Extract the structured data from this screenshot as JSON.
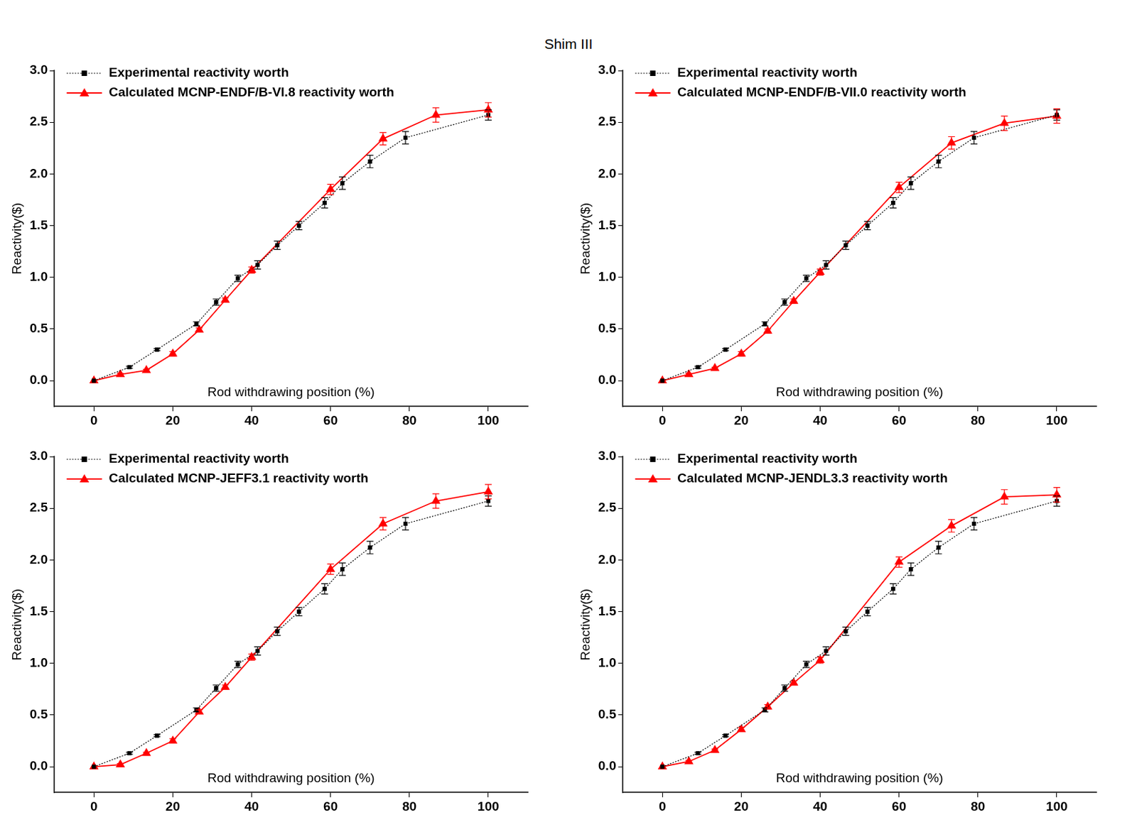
{
  "title": "Shim III",
  "chart_data": [
    {
      "type": "line",
      "x_label": "Rod withdrawing position (%)",
      "y_label": "Reactivity($)",
      "xlim": [
        -10,
        110
      ],
      "xticks": [
        0,
        20,
        40,
        60,
        80,
        100
      ],
      "ylim": [
        -0.25,
        3.0
      ],
      "yticks": [
        {
          "value": 0,
          "label": "0.0"
        },
        0.5,
        {
          "value": 1,
          "label": "1.0"
        },
        1.5,
        {
          "value": 2,
          "label": "2.0"
        },
        2.5,
        {
          "value": 3,
          "label": "3.0"
        }
      ],
      "grid": false,
      "legend": "upper left",
      "series": [
        {
          "name": "Experimental reactivity worth",
          "color": "#000000",
          "marker": "square",
          "line_style": "dotted",
          "x": [
            0,
            9,
            16,
            26,
            31,
            36.5,
            41.5,
            46.5,
            52,
            58.5,
            63,
            70,
            79,
            100
          ],
          "values": [
            0,
            0.13,
            0.3,
            0.55,
            0.76,
            0.99,
            1.12,
            1.31,
            1.5,
            1.72,
            1.91,
            2.12,
            2.35,
            2.57
          ],
          "errors": [
            0,
            0.01,
            0.01,
            0.02,
            0.03,
            0.03,
            0.04,
            0.04,
            0.04,
            0.05,
            0.06,
            0.06,
            0.06,
            0.05
          ]
        },
        {
          "name": "Calculated MCNP-ENDF/B-VI.8 reactivity worth",
          "color": "#ff0000",
          "marker": "triangle",
          "line_style": "solid",
          "x": [
            0,
            6.7,
            13.3,
            20,
            26.7,
            33.3,
            40,
            60,
            73.3,
            86.7,
            100
          ],
          "values": [
            0,
            0.06,
            0.1,
            0.26,
            0.49,
            0.78,
            1.07,
            1.85,
            2.34,
            2.57,
            2.62
          ],
          "errors": [
            0,
            0.01,
            0.01,
            0.02,
            0.02,
            0.02,
            0.03,
            0.05,
            0.06,
            0.07,
            0.07
          ]
        }
      ]
    },
    {
      "type": "line",
      "x_label": "Rod withdrawing position (%)",
      "y_label": "Reactivity($)",
      "xlim": [
        -10,
        110
      ],
      "xticks": [
        0,
        20,
        40,
        60,
        80,
        100
      ],
      "ylim": [
        -0.25,
        3.0
      ],
      "yticks": [
        {
          "value": 0,
          "label": "0.0"
        },
        0.5,
        {
          "value": 1,
          "label": "1.0"
        },
        1.5,
        {
          "value": 2,
          "label": "2.0"
        },
        2.5,
        {
          "value": 3,
          "label": "3.0"
        }
      ],
      "grid": false,
      "legend": "upper left",
      "series": [
        {
          "name": "Experimental reactivity worth",
          "color": "#000000",
          "marker": "square",
          "line_style": "dotted",
          "x": [
            0,
            9,
            16,
            26,
            31,
            36.5,
            41.5,
            46.5,
            52,
            58.5,
            63,
            70,
            79,
            100
          ],
          "values": [
            0,
            0.13,
            0.3,
            0.55,
            0.76,
            0.99,
            1.12,
            1.31,
            1.5,
            1.72,
            1.91,
            2.12,
            2.35,
            2.57
          ],
          "errors": [
            0,
            0.01,
            0.01,
            0.02,
            0.03,
            0.03,
            0.04,
            0.04,
            0.04,
            0.05,
            0.06,
            0.06,
            0.06,
            0.05
          ]
        },
        {
          "name": "Calculated MCNP-ENDF/B-VII.0 reactivity worth",
          "color": "#ff0000",
          "marker": "triangle",
          "line_style": "solid",
          "x": [
            0,
            6.7,
            13.3,
            20,
            26.7,
            33.3,
            40,
            60,
            73.3,
            86.7,
            100
          ],
          "values": [
            0,
            0.06,
            0.12,
            0.26,
            0.48,
            0.77,
            1.05,
            1.87,
            2.3,
            2.49,
            2.56
          ],
          "errors": [
            0,
            0.01,
            0.01,
            0.02,
            0.02,
            0.02,
            0.03,
            0.05,
            0.06,
            0.07,
            0.07
          ]
        }
      ]
    },
    {
      "type": "line",
      "x_label": "Rod withdrawing position (%)",
      "y_label": "Reactivity($)",
      "xlim": [
        -10,
        110
      ],
      "xticks": [
        0,
        20,
        40,
        60,
        80,
        100
      ],
      "ylim": [
        -0.25,
        3.0
      ],
      "yticks": [
        {
          "value": 0,
          "label": "0.0"
        },
        0.5,
        {
          "value": 1,
          "label": "1.0"
        },
        1.5,
        {
          "value": 2,
          "label": "2.0"
        },
        2.5,
        {
          "value": 3,
          "label": "3.0"
        }
      ],
      "grid": false,
      "legend": "upper left",
      "series": [
        {
          "name": "Experimental reactivity worth",
          "color": "#000000",
          "marker": "square",
          "line_style": "dotted",
          "x": [
            0,
            9,
            16,
            26,
            31,
            36.5,
            41.5,
            46.5,
            52,
            58.5,
            63,
            70,
            79,
            100
          ],
          "values": [
            0,
            0.13,
            0.3,
            0.55,
            0.76,
            0.99,
            1.12,
            1.31,
            1.5,
            1.72,
            1.91,
            2.12,
            2.35,
            2.57
          ],
          "errors": [
            0,
            0.01,
            0.01,
            0.02,
            0.03,
            0.03,
            0.04,
            0.04,
            0.04,
            0.05,
            0.06,
            0.06,
            0.06,
            0.05
          ]
        },
        {
          "name": "Calculated MCNP-JEFF3.1 reactivity worth",
          "color": "#ff0000",
          "marker": "triangle",
          "line_style": "solid",
          "x": [
            0,
            6.7,
            13.3,
            20,
            26.7,
            33.3,
            40,
            60,
            73.3,
            86.7,
            100
          ],
          "values": [
            0,
            0.02,
            0.13,
            0.25,
            0.53,
            0.77,
            1.06,
            1.91,
            2.35,
            2.57,
            2.66
          ],
          "errors": [
            0,
            0.01,
            0.01,
            0.02,
            0.02,
            0.02,
            0.03,
            0.05,
            0.06,
            0.07,
            0.07
          ]
        }
      ]
    },
    {
      "type": "line",
      "x_label": "Rod withdrawing position (%)",
      "y_label": "Reactivity($)",
      "xlim": [
        -10,
        110
      ],
      "xticks": [
        0,
        20,
        40,
        60,
        80,
        100
      ],
      "ylim": [
        -0.25,
        3.0
      ],
      "yticks": [
        {
          "value": 0,
          "label": "0.0"
        },
        0.5,
        {
          "value": 1,
          "label": "1.0"
        },
        1.5,
        {
          "value": 2,
          "label": "2.0"
        },
        2.5,
        {
          "value": 3,
          "label": "3.0"
        }
      ],
      "grid": false,
      "legend": "upper left",
      "series": [
        {
          "name": "Experimental reactivity worth",
          "color": "#000000",
          "marker": "square",
          "line_style": "dotted",
          "x": [
            0,
            9,
            16,
            26,
            31,
            36.5,
            41.5,
            46.5,
            52,
            58.5,
            63,
            70,
            79,
            100
          ],
          "values": [
            0,
            0.13,
            0.3,
            0.55,
            0.76,
            0.99,
            1.12,
            1.31,
            1.5,
            1.72,
            1.91,
            2.12,
            2.35,
            2.57
          ],
          "errors": [
            0,
            0.01,
            0.01,
            0.02,
            0.03,
            0.03,
            0.04,
            0.04,
            0.04,
            0.05,
            0.06,
            0.06,
            0.06,
            0.05
          ]
        },
        {
          "name": "Calculated MCNP-JENDL3.3 reactivity worth",
          "color": "#ff0000",
          "marker": "triangle",
          "line_style": "solid",
          "x": [
            0,
            6.7,
            13.3,
            20,
            26.7,
            33.3,
            40,
            60,
            73.3,
            86.7,
            100
          ],
          "values": [
            0,
            0.05,
            0.16,
            0.36,
            0.58,
            0.81,
            1.03,
            1.98,
            2.33,
            2.61,
            2.63
          ],
          "errors": [
            0,
            0.01,
            0.01,
            0.02,
            0.02,
            0.02,
            0.03,
            0.05,
            0.06,
            0.07,
            0.07
          ]
        }
      ]
    }
  ]
}
